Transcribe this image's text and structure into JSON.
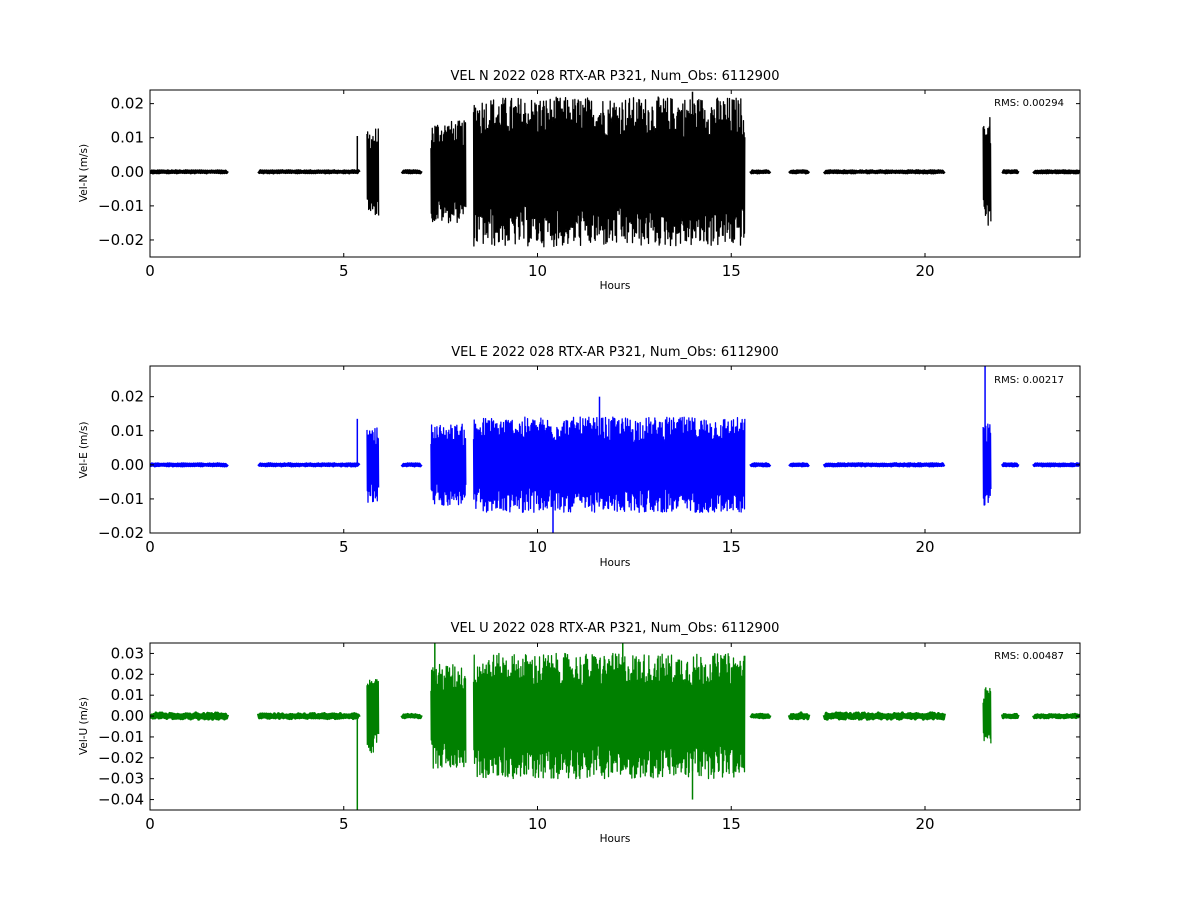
{
  "chart_data": [
    {
      "type": "line",
      "title": "VEL N 2022 028 RTX-AR  P321, Num_Obs: 6112900",
      "xlabel": "Hours",
      "ylabel": "Vel-N (m/s)",
      "xlim": [
        0,
        24
      ],
      "ylim": [
        -0.025,
        0.024
      ],
      "xticks": [
        "0",
        "5",
        "10",
        "15",
        "20"
      ],
      "yticks": [
        "0.02",
        "0.01",
        "0.00",
        "−0.01",
        "−0.02"
      ],
      "yticks_values": [
        0.02,
        0.01,
        0.0,
        -0.01,
        -0.02
      ],
      "color": "#000000",
      "rms_label": "RMS:  0.00294",
      "rms_color": "#0000ff",
      "grid": false,
      "segments": [
        {
          "x": [
            0.0,
            2.0
          ],
          "amp": 0.0003
        },
        {
          "x": [
            2.8,
            5.4
          ],
          "amp": 0.0003
        },
        {
          "x": [
            5.6,
            5.9
          ],
          "amp": 0.013
        },
        {
          "x": [
            6.5,
            7.0
          ],
          "amp": 0.0003
        },
        {
          "x": [
            7.25,
            8.15
          ],
          "amp": 0.015
        },
        {
          "x": [
            8.35,
            15.35
          ],
          "amp": 0.022
        },
        {
          "x": [
            15.5,
            16.0
          ],
          "amp": 0.0003
        },
        {
          "x": [
            16.5,
            17.0
          ],
          "amp": 0.0003
        },
        {
          "x": [
            17.4,
            20.5
          ],
          "amp": 0.0003
        },
        {
          "x": [
            21.5,
            21.7
          ],
          "amp": 0.016
        },
        {
          "x": [
            22.0,
            22.4
          ],
          "amp": 0.0003
        },
        {
          "x": [
            22.8,
            24.0
          ],
          "amp": 0.0003
        }
      ],
      "spikes": [
        {
          "x": 5.35,
          "y": 0.0105
        },
        {
          "x": 14.0,
          "y": 0.0235
        }
      ]
    },
    {
      "type": "line",
      "title": "VEL E 2022 028 RTX-AR  P321, Num_Obs: 6112900",
      "xlabel": "Hours",
      "ylabel": "Vel-E (m/s)",
      "xlim": [
        0,
        24
      ],
      "ylim": [
        -0.02,
        0.029
      ],
      "xticks": [
        "0",
        "5",
        "10",
        "15",
        "20"
      ],
      "yticks": [
        "0.02",
        "0.01",
        "0.00",
        "−0.01",
        "−0.02"
      ],
      "yticks_values": [
        0.02,
        0.01,
        0.0,
        -0.01,
        -0.02
      ],
      "color": "#0000ff",
      "rms_label": "RMS:  0.00217",
      "rms_color": "#0000ff",
      "grid": false,
      "segments": [
        {
          "x": [
            0.0,
            2.0
          ],
          "amp": 0.0003
        },
        {
          "x": [
            2.8,
            5.4
          ],
          "amp": 0.0003
        },
        {
          "x": [
            5.6,
            5.9
          ],
          "amp": 0.011
        },
        {
          "x": [
            6.5,
            7.0
          ],
          "amp": 0.0003
        },
        {
          "x": [
            7.25,
            8.15
          ],
          "amp": 0.012
        },
        {
          "x": [
            8.35,
            15.35
          ],
          "amp": 0.014
        },
        {
          "x": [
            15.5,
            16.0
          ],
          "amp": 0.0003
        },
        {
          "x": [
            16.5,
            17.0
          ],
          "amp": 0.0003
        },
        {
          "x": [
            17.4,
            20.5
          ],
          "amp": 0.0003
        },
        {
          "x": [
            21.5,
            21.7
          ],
          "amp": 0.012
        },
        {
          "x": [
            22.0,
            22.4
          ],
          "amp": 0.0003
        },
        {
          "x": [
            22.8,
            24.0
          ],
          "amp": 0.0003
        }
      ],
      "spikes": [
        {
          "x": 5.35,
          "y": 0.0135
        },
        {
          "x": 11.6,
          "y": 0.02
        },
        {
          "x": 10.4,
          "y": -0.02
        },
        {
          "x": 21.55,
          "y": 0.029
        }
      ]
    },
    {
      "type": "line",
      "title": "VEL U 2022 028 RTX-AR  P321, Num_Obs: 6112900",
      "xlabel": "Hours",
      "ylabel": "Vel-U (m/s)",
      "xlim": [
        0,
        24
      ],
      "ylim": [
        -0.045,
        0.035
      ],
      "xticks": [
        "0",
        "5",
        "10",
        "15",
        "20"
      ],
      "yticks": [
        "0.03",
        "0.02",
        "0.01",
        "0.00",
        "−0.01",
        "−0.02",
        "−0.03",
        "−0.04"
      ],
      "yticks_values": [
        0.03,
        0.02,
        0.01,
        0.0,
        -0.01,
        -0.02,
        -0.03,
        -0.04
      ],
      "color": "#008000",
      "rms_label": "RMS:  0.00487",
      "rms_color": "#0000ff",
      "grid": false,
      "segments": [
        {
          "x": [
            0.0,
            2.0
          ],
          "amp": 0.0015
        },
        {
          "x": [
            2.8,
            5.4
          ],
          "amp": 0.0012
        },
        {
          "x": [
            5.6,
            5.9
          ],
          "amp": 0.018
        },
        {
          "x": [
            6.5,
            7.0
          ],
          "amp": 0.0008
        },
        {
          "x": [
            7.25,
            8.15
          ],
          "amp": 0.025
        },
        {
          "x": [
            8.35,
            15.35
          ],
          "amp": 0.03
        },
        {
          "x": [
            15.5,
            16.0
          ],
          "amp": 0.0008
        },
        {
          "x": [
            16.5,
            17.0
          ],
          "amp": 0.0015
        },
        {
          "x": [
            17.4,
            20.5
          ],
          "amp": 0.0015
        },
        {
          "x": [
            21.5,
            21.7
          ],
          "amp": 0.014
        },
        {
          "x": [
            22.0,
            22.4
          ],
          "amp": 0.0008
        },
        {
          "x": [
            22.8,
            24.0
          ],
          "amp": 0.0008
        }
      ],
      "spikes": [
        {
          "x": 5.35,
          "y": -0.045
        },
        {
          "x": 7.35,
          "y": 0.035
        },
        {
          "x": 12.2,
          "y": 0.035
        },
        {
          "x": 14.0,
          "y": -0.04
        }
      ]
    }
  ]
}
